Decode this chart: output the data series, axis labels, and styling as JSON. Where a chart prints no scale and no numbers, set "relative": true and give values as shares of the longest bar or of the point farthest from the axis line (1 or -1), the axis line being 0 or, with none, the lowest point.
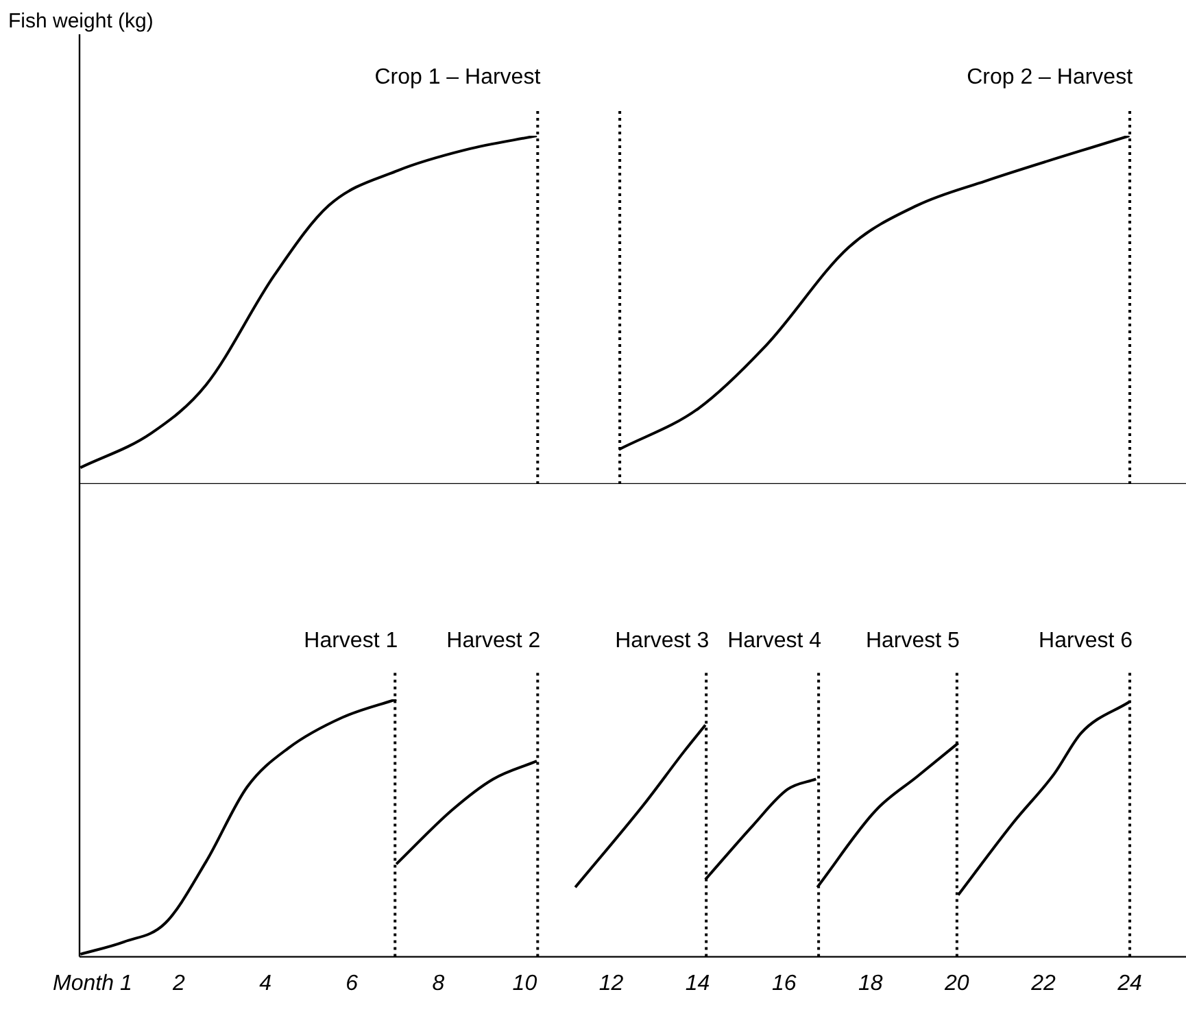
{
  "chart_data": [
    {
      "type": "line",
      "ylabel": "Fish weight (kg)",
      "relative": true,
      "xlim": [
        -0.3,
        25.3
      ],
      "tick_labels": false,
      "grid": false,
      "legend": false,
      "marker": "none",
      "line_style": "solid",
      "series": [
        {
          "color": "#000000",
          "x": [
            -0.28,
            1.36,
            2.63,
            4.21,
            5.47,
            7.06,
            8.64,
            10.28
          ],
          "values": [
            0.047,
            0.146,
            0.285,
            0.6,
            0.8,
            0.9,
            0.96,
            1
          ]
        },
        {
          "color": "#000000",
          "x": [
            12.18,
            14.02,
            15.6,
            17.5,
            19.08,
            20.66,
            23.99
          ],
          "values": [
            0.099,
            0.217,
            0.4,
            0.68,
            0.8,
            0.87,
            1
          ]
        }
      ],
      "ref_lines": [
        {
          "axis": "x",
          "value": 10.3,
          "label": "Crop 1 – Harvest",
          "line_style": "dotted"
        },
        {
          "axis": "x",
          "value": 12.2,
          "line_style": "dotted"
        },
        {
          "axis": "x",
          "value": 24,
          "label": "Crop 2 – Harvest",
          "line_style": "dotted"
        }
      ]
    },
    {
      "type": "line",
      "relative": true,
      "xlim": [
        -0.3,
        25.3
      ],
      "xticks": [
        {
          "value": 0,
          "label": "Month 1"
        },
        2,
        4,
        6,
        8,
        10,
        12,
        14,
        16,
        18,
        20,
        22,
        24
      ],
      "tick_labels": "x",
      "grid": false,
      "legend": false,
      "marker": "none",
      "line_style": "solid",
      "series": [
        {
          "color": "#000000",
          "x": [
            -0.28,
            0.73,
            1.68,
            2.63,
            3.58,
            4.53,
            5.79,
            7.03
          ],
          "values": [
            0.01,
            0.058,
            0.13,
            0.37,
            0.66,
            0.81,
            0.93,
            1
          ]
        },
        {
          "color": "#000000",
          "x": [
            7.03,
            8.32,
            9.27,
            10.28
          ],
          "values": [
            0.36,
            0.57,
            0.69,
            0.76
          ]
        },
        {
          "color": "#000000",
          "x": [
            11.17,
            12.75,
            13.7,
            14.18
          ],
          "values": [
            0.27,
            0.59,
            0.8,
            0.9
          ]
        },
        {
          "color": "#000000",
          "x": [
            14.18,
            15.28,
            16.08,
            16.74
          ],
          "values": [
            0.3,
            0.51,
            0.65,
            0.69
          ]
        },
        {
          "color": "#000000",
          "x": [
            16.77,
            18.13,
            19.08,
            20.03
          ],
          "values": [
            0.27,
            0.57,
            0.7,
            0.83
          ]
        },
        {
          "color": "#000000",
          "x": [
            20.03,
            21.3,
            22.25,
            22.88,
            23.99
          ],
          "values": [
            0.24,
            0.52,
            0.71,
            0.87,
            0.99
          ]
        }
      ],
      "ref_lines": [
        {
          "axis": "x",
          "value": 7,
          "label": "Harvest 1",
          "line_style": "dotted"
        },
        {
          "axis": "x",
          "value": 10.3,
          "label": "Harvest 2",
          "line_style": "dotted"
        },
        {
          "axis": "x",
          "value": 14.2,
          "label": "Harvest 3",
          "line_style": "dotted"
        },
        {
          "axis": "x",
          "value": 16.8,
          "label": "Harvest 4",
          "line_style": "dotted"
        },
        {
          "axis": "x",
          "value": 20,
          "label": "Harvest 5",
          "line_style": "dotted"
        },
        {
          "axis": "x",
          "value": 24,
          "label": "Harvest 6",
          "line_style": "dotted"
        }
      ]
    }
  ]
}
